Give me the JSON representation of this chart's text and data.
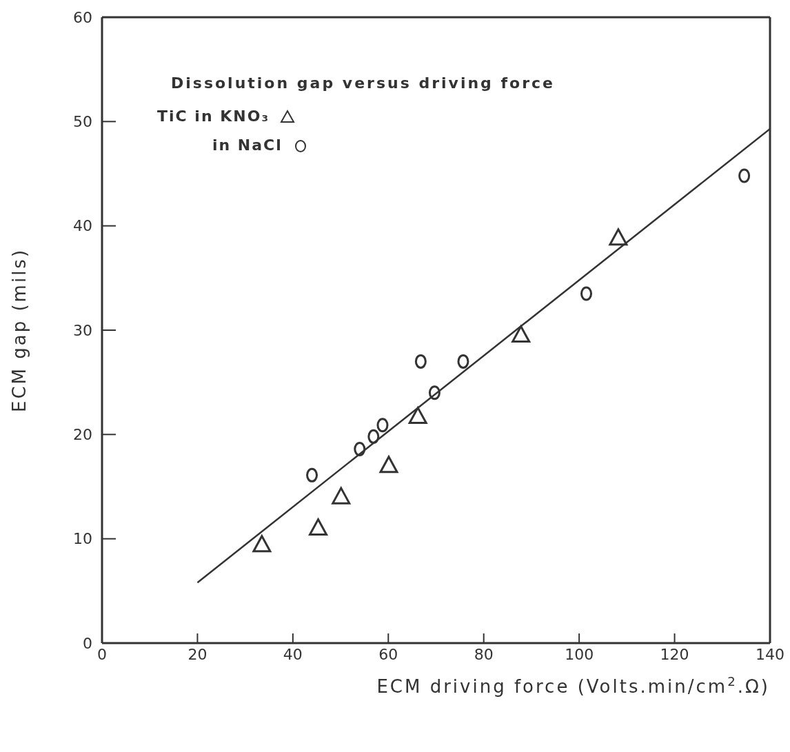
{
  "chart_data": {
    "type": "scatter",
    "title": "Dissolution gap versus driving force",
    "xlabel": "ECM driving force (Volts.min/cm$^{2}$.Ω)",
    "ylabel": "ECM gap (mils)",
    "xlim": [
      0,
      140
    ],
    "xticks": [
      0,
      20,
      40,
      60,
      80,
      100,
      120,
      140
    ],
    "ylim": [
      0,
      60
    ],
    "yticks": [
      0,
      10,
      20,
      30,
      40,
      50,
      60
    ],
    "grid": false,
    "legend": "top left",
    "series": [
      {
        "name": "TiC in KNO₃",
        "color": "#333333",
        "marker": "triangle",
        "x": [
          33.5,
          45.3,
          50.1,
          60.1,
          66.2,
          87.8,
          108.2
        ],
        "values": [
          9.4,
          11.0,
          14.0,
          17.0,
          21.7,
          29.5,
          38.8
        ]
      },
      {
        "name": "in NaCl",
        "color": "#333333",
        "marker": "circle",
        "x": [
          44.0,
          54.0,
          56.9,
          58.8,
          66.8,
          69.7,
          75.7,
          101.5,
          134.6
        ],
        "values": [
          16.1,
          18.6,
          19.8,
          20.9,
          27.0,
          24.0,
          27.0,
          33.5,
          44.8
        ]
      },
      {
        "type": "line",
        "color": "#333333",
        "marker": "none",
        "x": [
          20,
          140
        ],
        "values": [
          5.8,
          49.3
        ]
      }
    ]
  }
}
